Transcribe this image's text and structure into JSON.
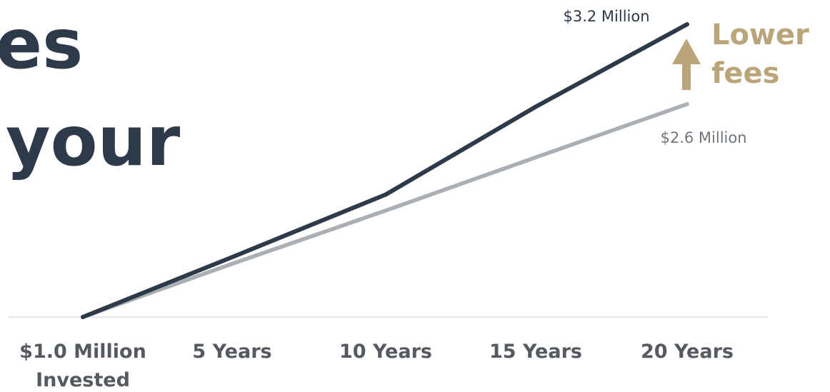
{
  "headline": {
    "line1": "es",
    "line2": "your"
  },
  "colors": {
    "headline": "#2d3a4a",
    "series_low_fee": "#2d3a4a",
    "series_standard": "#a9afb3",
    "annotation": "#b9a579",
    "baseline": "#e6e6e6"
  },
  "chart_data": {
    "type": "line",
    "categories": [
      "$1.0 Million Invested",
      "5 Years",
      "10 Years",
      "15 Years",
      "20 Years"
    ],
    "category_lines": [
      [
        "$1.0 Million",
        "Invested"
      ],
      [
        "5 Years"
      ],
      [
        "10 Years"
      ],
      [
        "15 Years"
      ],
      [
        "20 Years"
      ]
    ],
    "x": [
      0,
      5,
      10,
      15,
      20
    ],
    "series": [
      {
        "values": [
          1.0,
          1.45,
          1.92,
          2.58,
          3.2
        ],
        "end_label": "$3.2 Million",
        "color": "#2d3a4a"
      },
      {
        "values": [
          1.0,
          1.4,
          1.8,
          2.2,
          2.6
        ],
        "end_label": "$2.6 Million",
        "color": "#a9afb3"
      }
    ],
    "ylim": [
      1.0,
      3.2
    ],
    "annotation": {
      "lines": [
        "Lower",
        "fees"
      ],
      "icon": "arrow-up-icon"
    },
    "grid": false,
    "legend": "none"
  }
}
